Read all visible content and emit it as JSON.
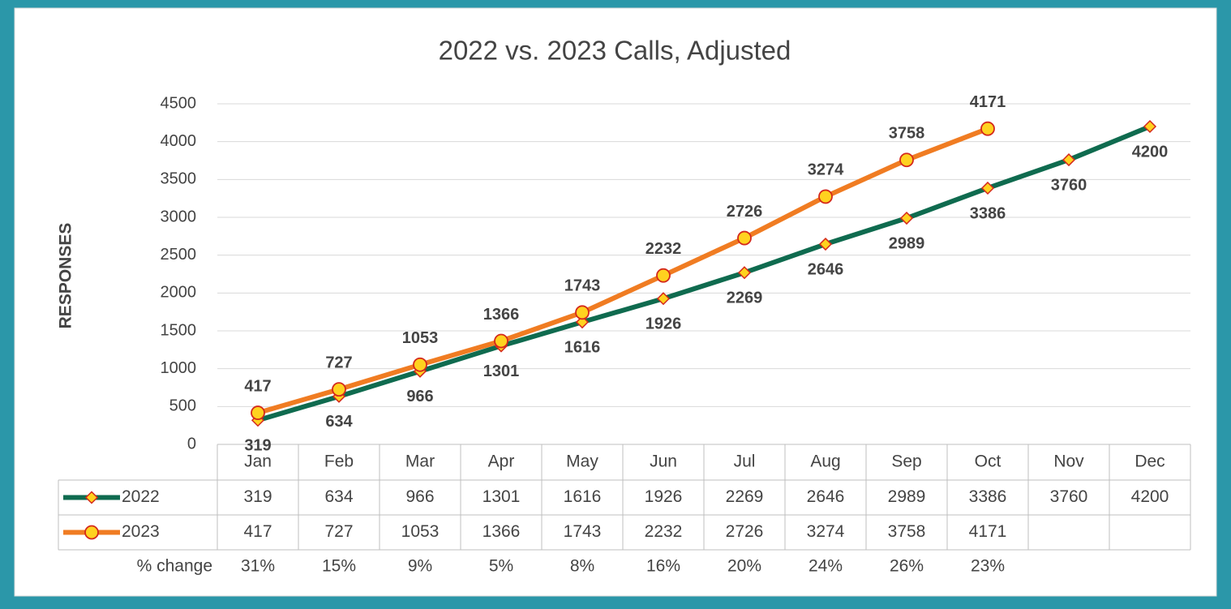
{
  "chart_data": {
    "type": "line",
    "title": "2022 vs. 2023 Calls, Adjusted",
    "y_label": "RESPONSES",
    "categories": [
      "Jan",
      "Feb",
      "Mar",
      "Apr",
      "May",
      "Jun",
      "Jul",
      "Aug",
      "Sep",
      "Oct",
      "Nov",
      "Dec"
    ],
    "series": [
      {
        "name": "2022",
        "color": "#0f6b4f",
        "marker_fill": "#ffd21f",
        "marker_stroke": "#d4281c",
        "marker": "diamond",
        "values": [
          319,
          634,
          966,
          1301,
          1616,
          1926,
          2269,
          2646,
          2989,
          3386,
          3760,
          4200
        ]
      },
      {
        "name": "2023",
        "color": "#f07c22",
        "marker_fill": "#ffd21f",
        "marker_stroke": "#d4281c",
        "marker": "circle",
        "values": [
          417,
          727,
          1053,
          1366,
          1743,
          2232,
          2726,
          3274,
          3758,
          4171,
          null,
          null
        ]
      }
    ],
    "table_rows": [
      {
        "name": "% change",
        "values": [
          31,
          15,
          9,
          5,
          8,
          16,
          20,
          24,
          26,
          23,
          null,
          null
        ],
        "value_labels": [
          "31%",
          "15%",
          "9%",
          "5%",
          "8%",
          "16%",
          "20%",
          "24%",
          "26%",
          "23%",
          null,
          null
        ]
      }
    ],
    "ylim": [
      0,
      4500
    ],
    "yticks": [
      0,
      500,
      1000,
      1500,
      2000,
      2500,
      3000,
      3500,
      4000,
      4500
    ],
    "grid": true
  }
}
